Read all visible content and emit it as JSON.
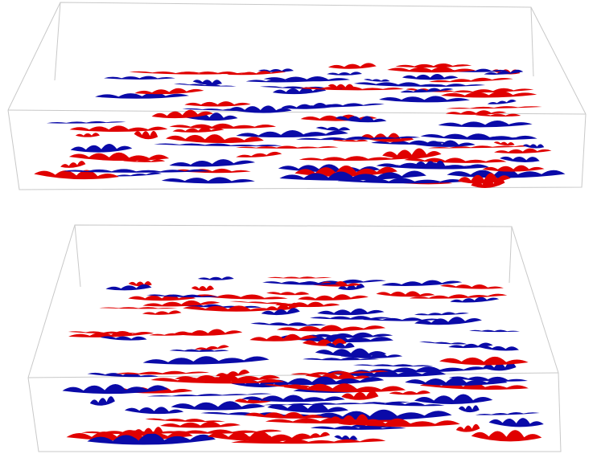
{
  "figure": {
    "panels": [
      {
        "name": "top-volume",
        "description_colors": {
          "positive": "#e00000",
          "negative": "#0a0aa8"
        }
      },
      {
        "name": "bottom-volume",
        "description_colors": {
          "positive": "#e00000",
          "negative": "#0a0aa8"
        }
      }
    ],
    "colors": {
      "positive_isosurface": "#e00000",
      "negative_isosurface": "#0a0aa8",
      "box_edges": "#c8c8c8",
      "background": "#ffffff"
    }
  }
}
